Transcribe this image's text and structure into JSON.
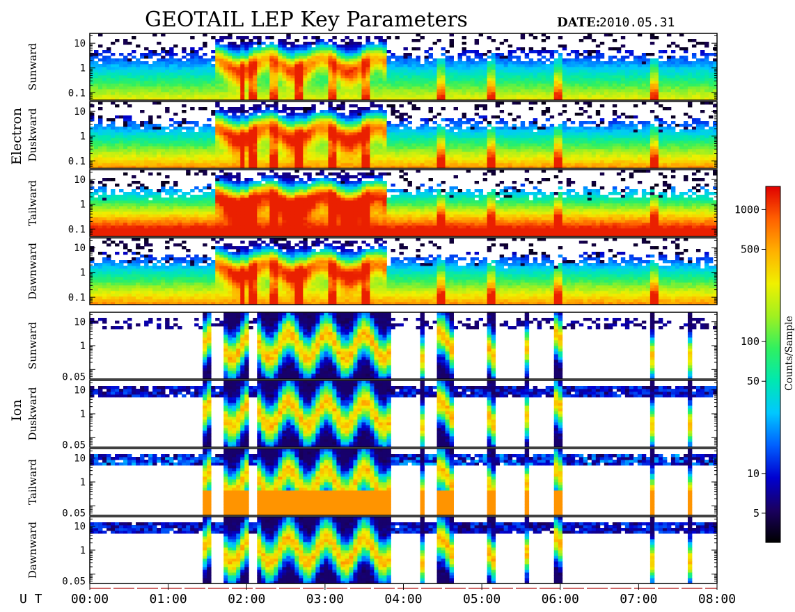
{
  "chart_data": {
    "type": "heatmap",
    "title": "GEOTAIL LEP Key Parameters",
    "date_label": "DATE:",
    "date_value": "2010.05.31",
    "x_axis": {
      "label": "U T",
      "unit": "hours",
      "range": [
        0,
        8
      ],
      "ticks": [
        {
          "value": 0,
          "label": "00:00"
        },
        {
          "value": 1,
          "label": "01:00"
        },
        {
          "value": 2,
          "label": "02:00"
        },
        {
          "value": 3,
          "label": "03:00"
        },
        {
          "value": 4,
          "label": "04:00"
        },
        {
          "value": 5,
          "label": "05:00"
        },
        {
          "value": 6,
          "label": "06:00"
        },
        {
          "value": 7,
          "label": "07:00"
        },
        {
          "value": 8,
          "label": "08:00"
        }
      ]
    },
    "groups": [
      {
        "name": "Electron",
        "y_scale": "log",
        "y_range": [
          0.05,
          25
        ],
        "y_ticks": [
          {
            "value": 10,
            "label": "10"
          },
          {
            "value": 1,
            "label": "1"
          },
          {
            "value": 0.1,
            "label": "0.1"
          }
        ],
        "panels": [
          {
            "label": "Sunward",
            "lowband": 0.55
          },
          {
            "label": "Duskward",
            "lowband": 0.65
          },
          {
            "label": "Tailward",
            "lowband": 0.85
          },
          {
            "label": "Dawnward",
            "lowband": 0.65
          }
        ]
      },
      {
        "name": "Ion",
        "y_scale": "log",
        "y_range": [
          0.04,
          25
        ],
        "y_ticks": [
          {
            "value": 10,
            "label": "10"
          },
          {
            "value": 1,
            "label": "1"
          },
          {
            "value": 0.05,
            "label": "0.05"
          }
        ],
        "panels": [
          {
            "label": "Sunward",
            "upper": 0.25
          },
          {
            "label": "Duskward",
            "upper": 0.55
          },
          {
            "label": "Tailward",
            "upper": 0.8
          },
          {
            "label": "Dawnward",
            "upper": 0.55
          }
        ]
      }
    ],
    "colorbar": {
      "label": "Counts/Sample",
      "scale": "log",
      "range": [
        3,
        1500
      ],
      "ticks": [
        {
          "value": 1000,
          "label": "1000"
        },
        {
          "value": 500,
          "label": "500"
        },
        {
          "value": 100,
          "label": "100"
        },
        {
          "value": 50,
          "label": "50"
        },
        {
          "value": 10,
          "label": "10"
        },
        {
          "value": 5,
          "label": "5"
        }
      ],
      "colormap": [
        "#000000",
        "#1a0060",
        "#0000d0",
        "#0060ff",
        "#00c8ff",
        "#00e8b0",
        "#30f060",
        "#a0f020",
        "#f0f000",
        "#ffb000",
        "#ff6000",
        "#e00000"
      ]
    },
    "active_intervals_ion_hours": [
      [
        1.45,
        1.55
      ],
      [
        1.7,
        2.05
      ],
      [
        2.15,
        3.85
      ],
      [
        4.2,
        4.25
      ],
      [
        4.45,
        4.65
      ],
      [
        5.05,
        5.15
      ],
      [
        5.55,
        5.6
      ],
      [
        5.9,
        6.0
      ],
      [
        7.15,
        7.2
      ],
      [
        7.65,
        7.68
      ]
    ],
    "burst_hours": [
      1.95,
      2.1,
      2.35,
      2.65,
      3.1,
      3.5,
      4.5,
      5.1,
      5.95,
      7.2
    ]
  }
}
